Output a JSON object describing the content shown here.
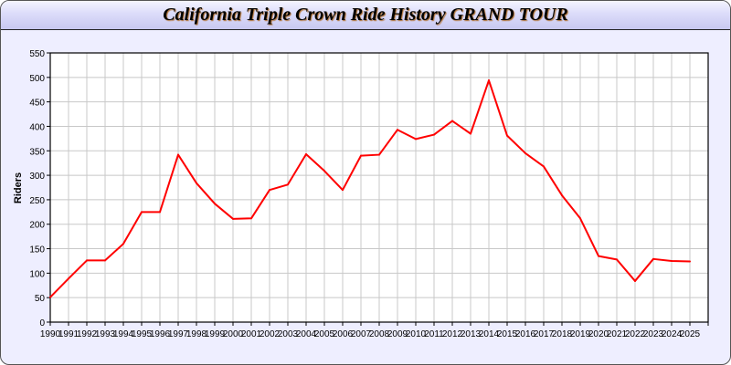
{
  "chart_data": {
    "type": "line",
    "title": "California Triple Crown Ride History GRAND TOUR",
    "xlabel": "",
    "ylabel": "Riders",
    "ylim": [
      0,
      550
    ],
    "yticks": [
      0,
      50,
      100,
      150,
      200,
      250,
      300,
      350,
      400,
      450,
      500,
      550
    ],
    "xlim": [
      1990,
      2026
    ],
    "grid": true,
    "line_color": "#ff0000",
    "x": [
      1990,
      1991,
      1992,
      1993,
      1994,
      1995,
      1996,
      1997,
      1998,
      1999,
      2000,
      2001,
      2002,
      2003,
      2004,
      2005,
      2006,
      2007,
      2008,
      2009,
      2010,
      2011,
      2012,
      2013,
      2014,
      2015,
      2016,
      2017,
      2018,
      2019,
      2020,
      2021,
      2022,
      2023,
      2024,
      2025
    ],
    "series": [
      {
        "values": [
          51,
          89,
          126,
          126,
          160,
          225,
          225,
          342,
          284,
          242,
          211,
          212,
          270,
          281,
          343,
          309,
          270,
          340,
          342,
          393,
          374,
          383,
          411,
          385,
          494,
          381,
          345,
          318,
          259,
          212,
          135,
          128,
          84,
          129,
          125,
          124
        ]
      }
    ]
  }
}
